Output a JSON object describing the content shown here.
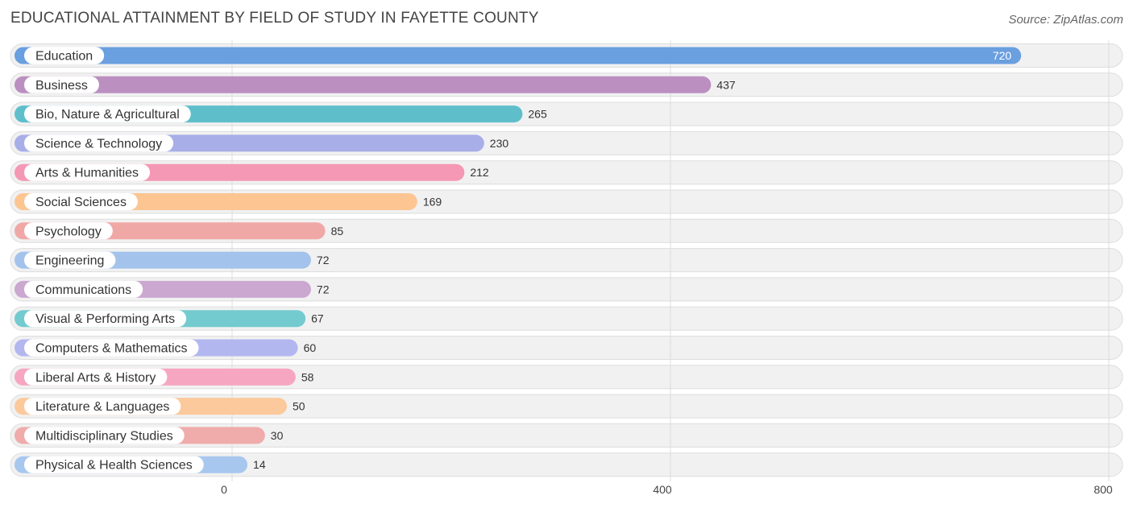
{
  "header": {
    "title": "EDUCATIONAL ATTAINMENT BY FIELD OF STUDY IN FAYETTE COUNTY",
    "source": "Source: ZipAtlas.com"
  },
  "chart_data": {
    "type": "bar",
    "orientation": "horizontal",
    "title": "EDUCATIONAL ATTAINMENT BY FIELD OF STUDY IN FAYETTE COUNTY",
    "xlim": [
      0,
      800
    ],
    "ticks": [
      0,
      400,
      800
    ],
    "grid": true,
    "categories": [
      "Education",
      "Business",
      "Bio, Nature & Agricultural",
      "Science & Technology",
      "Arts & Humanities",
      "Social Sciences",
      "Psychology",
      "Engineering",
      "Communications",
      "Visual & Performing Arts",
      "Computers & Mathematics",
      "Liberal Arts & History",
      "Literature & Languages",
      "Multidisciplinary Studies",
      "Physical & Health Sciences"
    ],
    "values": [
      720,
      437,
      265,
      230,
      212,
      169,
      85,
      72,
      72,
      67,
      60,
      58,
      50,
      30,
      14
    ],
    "colors": [
      "#6a9fe0",
      "#bb8fc0",
      "#5ebfcb",
      "#a7aee8",
      "#f598b5",
      "#fcc592",
      "#f0a8a6",
      "#a3c3ec",
      "#cba8d0",
      "#74cbcf",
      "#b3b7ef",
      "#f7a6c1",
      "#fcc99c",
      "#f0abab",
      "#a8c7ef"
    ]
  }
}
